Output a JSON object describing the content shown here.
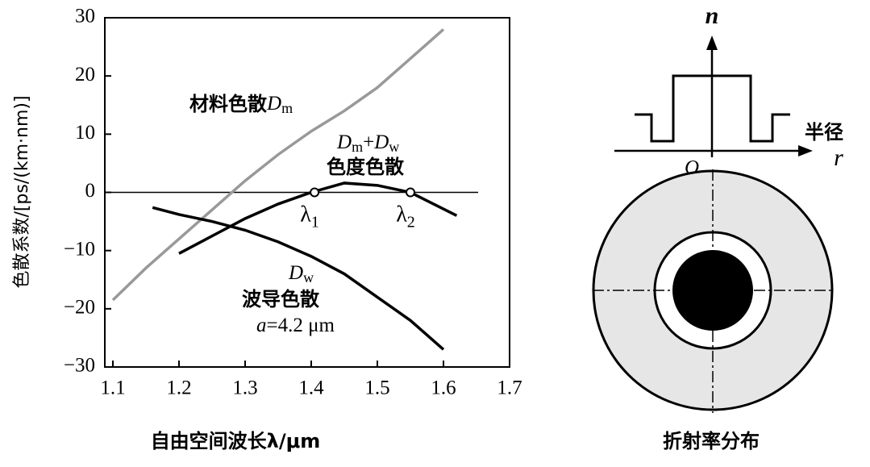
{
  "chart_data": {
    "type": "line",
    "ylabel": "色散系数/[ps/(km·nm)]",
    "xlabel": "自由空间波长λ/μm",
    "xlim": [
      1.1,
      1.7
    ],
    "xticks": [
      1.1,
      1.2,
      1.3,
      1.4,
      1.5,
      1.6,
      1.7
    ],
    "ylim": [
      -30,
      30
    ],
    "yticks": [
      {
        "value": -30,
        "label": "−30"
      },
      {
        "value": -20,
        "label": "−20"
      },
      {
        "value": -10,
        "label": "−10"
      },
      0,
      10,
      20,
      30
    ],
    "series": [
      {
        "color": "#999999",
        "x": [
          1.1,
          1.15,
          1.2,
          1.25,
          1.3,
          1.35,
          1.4,
          1.45,
          1.5,
          1.55,
          1.6
        ],
        "values": [
          -18.5,
          -13,
          -8,
          -3,
          2,
          6.5,
          10.5,
          14,
          18,
          23,
          28
        ]
      },
      {
        "color": "#000000",
        "x": [
          1.16,
          1.2,
          1.25,
          1.3,
          1.35,
          1.4,
          1.45,
          1.5,
          1.55,
          1.6
        ],
        "values": [
          -2.6,
          -3.8,
          -5,
          -6.5,
          -8.5,
          -11,
          -14,
          -18,
          -22,
          -27
        ]
      },
      {
        "color": "#000000",
        "x": [
          1.2,
          1.25,
          1.3,
          1.35,
          1.4,
          1.45,
          1.5,
          1.55,
          1.62
        ],
        "values": [
          -10.5,
          -7.5,
          -4.5,
          -2,
          0,
          1.6,
          1.2,
          0,
          -4
        ]
      }
    ],
    "markers": [
      {
        "x": 1.405,
        "y": 0,
        "label": "λ",
        "sub": "1"
      },
      {
        "x": 1.55,
        "y": 0,
        "label": "λ",
        "sub": "2"
      }
    ],
    "annotations": [
      {
        "parts": [
          {
            "text": "材料色散",
            "style": "cjk"
          },
          {
            "text": "D",
            "style": "it"
          },
          {
            "text": "m",
            "style": "sub"
          }
        ]
      },
      {
        "parts": [
          {
            "text": "D",
            "style": "it"
          },
          {
            "text": "m",
            "style": "sub"
          },
          {
            "text": "+",
            "style": "plain"
          },
          {
            "text": "D",
            "style": "it"
          },
          {
            "text": "w",
            "style": "sub"
          }
        ]
      },
      {
        "parts": [
          {
            "text": "色度色散",
            "style": "cjk"
          }
        ]
      },
      {
        "parts": [
          {
            "text": "D",
            "style": "it"
          },
          {
            "text": "w",
            "style": "sub"
          }
        ]
      },
      {
        "parts": [
          {
            "text": "波导色散",
            "style": "cjk"
          }
        ]
      },
      {
        "parts": [
          {
            "text": "a",
            "style": "it"
          },
          {
            "text": "=4.2 μm",
            "style": "plain"
          }
        ]
      }
    ]
  },
  "diagram": {
    "n_axis": "n",
    "r_axis_text": "半径",
    "r_axis": "r",
    "origin": "O",
    "caption": "折射率分布"
  }
}
